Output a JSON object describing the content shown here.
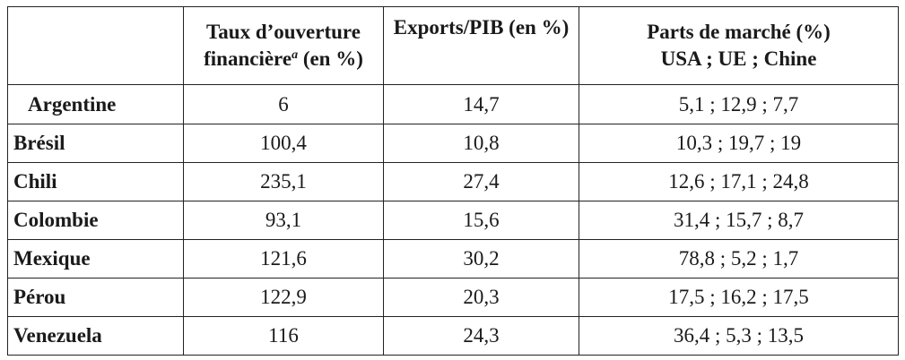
{
  "header": {
    "col0": "",
    "col1_line1": "Taux d’ouverture",
    "col1_line2": "financière",
    "col1_note": "a",
    "col1_line2_suffix": " (en %)",
    "col2": "Exports/PIB (en %)",
    "col3_line1": "Parts de marché (%)",
    "col3_line2": "USA ; UE ; Chine"
  },
  "rows": [
    {
      "country": "Argentine",
      "open": "6",
      "exports": "14,7",
      "shares": "5,1 ; 12,9 ; 7,7"
    },
    {
      "country": "Brésil",
      "open": "100,4",
      "exports": "10,8",
      "shares": "10,3 ; 19,7 ; 19"
    },
    {
      "country": "Chili",
      "open": "235,1",
      "exports": "27,4",
      "shares": "12,6 ; 17,1 ; 24,8"
    },
    {
      "country": "Colombie",
      "open": "93,1",
      "exports": "15,6",
      "shares": "31,4 ; 15,7 ; 8,7"
    },
    {
      "country": "Mexique",
      "open": "121,6",
      "exports": "30,2",
      "shares": "78,8 ; 5,2 ; 1,7"
    },
    {
      "country": "Pérou",
      "open": "122,9",
      "exports": "20,3",
      "shares": "17,5 ; 16,2 ; 17,5"
    },
    {
      "country": "Venezuela",
      "open": "116",
      "exports": "24,3",
      "shares": "36,4 ; 5,3 ; 13,5"
    }
  ]
}
